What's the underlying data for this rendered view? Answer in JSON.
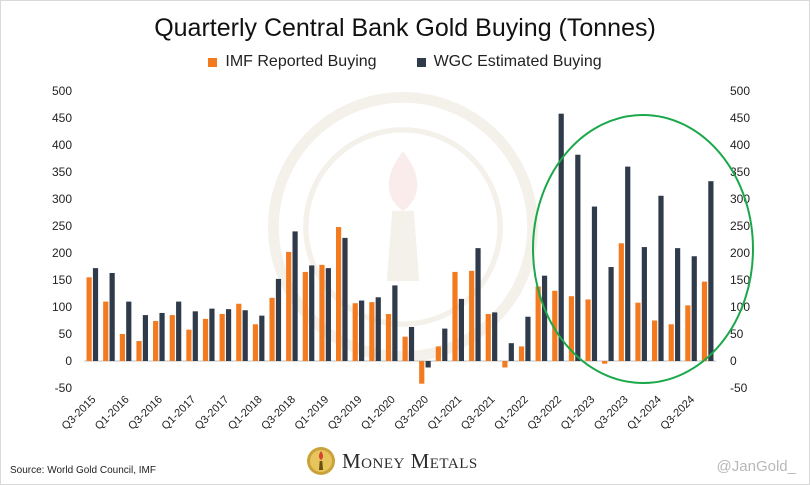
{
  "chart_data": {
    "type": "bar",
    "title": "Quarterly Central Bank Gold Buying (Tonnes)",
    "categories": [
      "Q3-2015",
      "Q4-2015",
      "Q1-2016",
      "Q2-2016",
      "Q3-2016",
      "Q4-2016",
      "Q1-2017",
      "Q2-2017",
      "Q3-2017",
      "Q4-2017",
      "Q1-2018",
      "Q2-2018",
      "Q3-2018",
      "Q4-2018",
      "Q1-2019",
      "Q2-2019",
      "Q3-2019",
      "Q4-2019",
      "Q1-2020",
      "Q2-2020",
      "Q3-2020",
      "Q4-2020",
      "Q1-2021",
      "Q2-2021",
      "Q3-2021",
      "Q4-2021",
      "Q1-2022",
      "Q2-2022",
      "Q3-2022",
      "Q4-2022",
      "Q1-2023",
      "Q2-2023",
      "Q3-2023",
      "Q4-2023",
      "Q1-2024",
      "Q2-2024",
      "Q3-2024",
      "Q4-2024"
    ],
    "tick_labels": [
      "Q3-2015",
      "Q1-2016",
      "Q3-2016",
      "Q1-2017",
      "Q3-2017",
      "Q1-2018",
      "Q3-2018",
      "Q1-2019",
      "Q3-2019",
      "Q1-2020",
      "Q3-2020",
      "Q1-2021",
      "Q3-2021",
      "Q1-2022",
      "Q3-2022",
      "Q1-2023",
      "Q3-2023",
      "Q1-2024",
      "Q3-2024"
    ],
    "series": [
      {
        "name": "IMF Reported Buying",
        "color": "#f47a20",
        "values": [
          155,
          110,
          50,
          37,
          74,
          85,
          58,
          78,
          87,
          106,
          68,
          117,
          202,
          165,
          178,
          248,
          107,
          109,
          87,
          45,
          -42,
          27,
          165,
          167,
          87,
          -12,
          27,
          138,
          130,
          120,
          114,
          -5,
          218,
          108,
          75,
          68,
          103,
          147
        ]
      },
      {
        "name": "WGC Estimated Buying",
        "color": "#2f3a4a",
        "values": [
          172,
          163,
          110,
          85,
          89,
          110,
          92,
          97,
          96,
          94,
          84,
          152,
          240,
          177,
          172,
          228,
          112,
          118,
          140,
          63,
          -12,
          60,
          115,
          209,
          90,
          33,
          82,
          158,
          458,
          382,
          286,
          174,
          360,
          211,
          306,
          209,
          194,
          333
        ]
      }
    ],
    "yticks": [
      -50,
      0,
      50,
      100,
      150,
      200,
      250,
      300,
      350,
      400,
      450,
      500
    ],
    "ylim": [
      -50,
      500
    ],
    "legend": "top",
    "annotation": "green ellipse highlighting Q3-2022 to Q4-2024"
  },
  "footer": {
    "source": "Source: World Gold Council, IMF",
    "brand": "Money Metals",
    "handle": "@JanGold_"
  },
  "colors": {
    "imf": "#f47a20",
    "wgc": "#2f3a4a",
    "highlight": "#1aa84a"
  }
}
